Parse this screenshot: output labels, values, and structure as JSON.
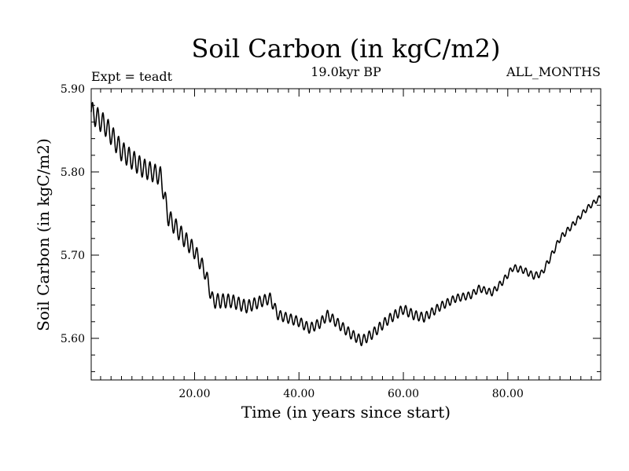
{
  "header": {
    "title": "Soil Carbon (in kgC/m2)",
    "subtitle": "19.0kyr BP",
    "left_label": "Expt = teadt",
    "right_label": "ALL_MONTHS"
  },
  "chart_data": {
    "type": "line",
    "title": "Soil Carbon (in kgC/m2)",
    "xlabel": "Time (in years since start)",
    "ylabel": "Soil Carbon (in kgC/m2)",
    "xlim": [
      0.2,
      97.8
    ],
    "ylim": [
      5.55,
      5.9
    ],
    "x_ticks": [
      20,
      40,
      60,
      80
    ],
    "x_tick_labels": [
      "20.00",
      "40.00",
      "60.00",
      "80.00"
    ],
    "y_ticks": [
      5.6,
      5.7,
      5.8,
      5.9
    ],
    "y_tick_labels": [
      "5.60",
      "5.70",
      "5.80",
      "5.90"
    ],
    "grid": false,
    "seasonal_cycle": true,
    "series": [
      {
        "color": "#000000",
        "trend": [
          [
            0.2,
            5.872
          ],
          [
            3,
            5.855
          ],
          [
            6,
            5.825
          ],
          [
            10,
            5.805
          ],
          [
            13.5,
            5.795
          ],
          [
            15,
            5.745
          ],
          [
            18,
            5.72
          ],
          [
            20,
            5.705
          ],
          [
            22,
            5.68
          ],
          [
            23.5,
            5.645
          ],
          [
            27,
            5.645
          ],
          [
            30,
            5.638
          ],
          [
            33,
            5.645
          ],
          [
            34.5,
            5.648
          ],
          [
            36,
            5.628
          ],
          [
            40,
            5.62
          ],
          [
            42,
            5.612
          ],
          [
            44,
            5.618
          ],
          [
            45.5,
            5.628
          ],
          [
            48,
            5.615
          ],
          [
            50,
            5.605
          ],
          [
            52,
            5.597
          ],
          [
            54,
            5.605
          ],
          [
            57,
            5.622
          ],
          [
            60,
            5.635
          ],
          [
            62,
            5.628
          ],
          [
            64,
            5.625
          ],
          [
            67,
            5.638
          ],
          [
            70,
            5.648
          ],
          [
            73,
            5.652
          ],
          [
            74.5,
            5.66
          ],
          [
            77,
            5.655
          ],
          [
            79,
            5.668
          ],
          [
            81,
            5.685
          ],
          [
            83,
            5.682
          ],
          [
            85,
            5.675
          ],
          [
            86.5,
            5.678
          ],
          [
            88,
            5.695
          ],
          [
            90,
            5.72
          ],
          [
            93,
            5.74
          ],
          [
            95,
            5.755
          ],
          [
            97.8,
            5.77
          ]
        ],
        "seasonal_amplitude": [
          [
            0.2,
            0.013
          ],
          [
            14,
            0.011
          ],
          [
            23,
            0.009
          ],
          [
            37,
            0.006
          ],
          [
            60,
            0.006
          ],
          [
            75,
            0.004
          ],
          [
            88,
            0.004
          ],
          [
            97.8,
            0.003
          ]
        ]
      }
    ]
  }
}
